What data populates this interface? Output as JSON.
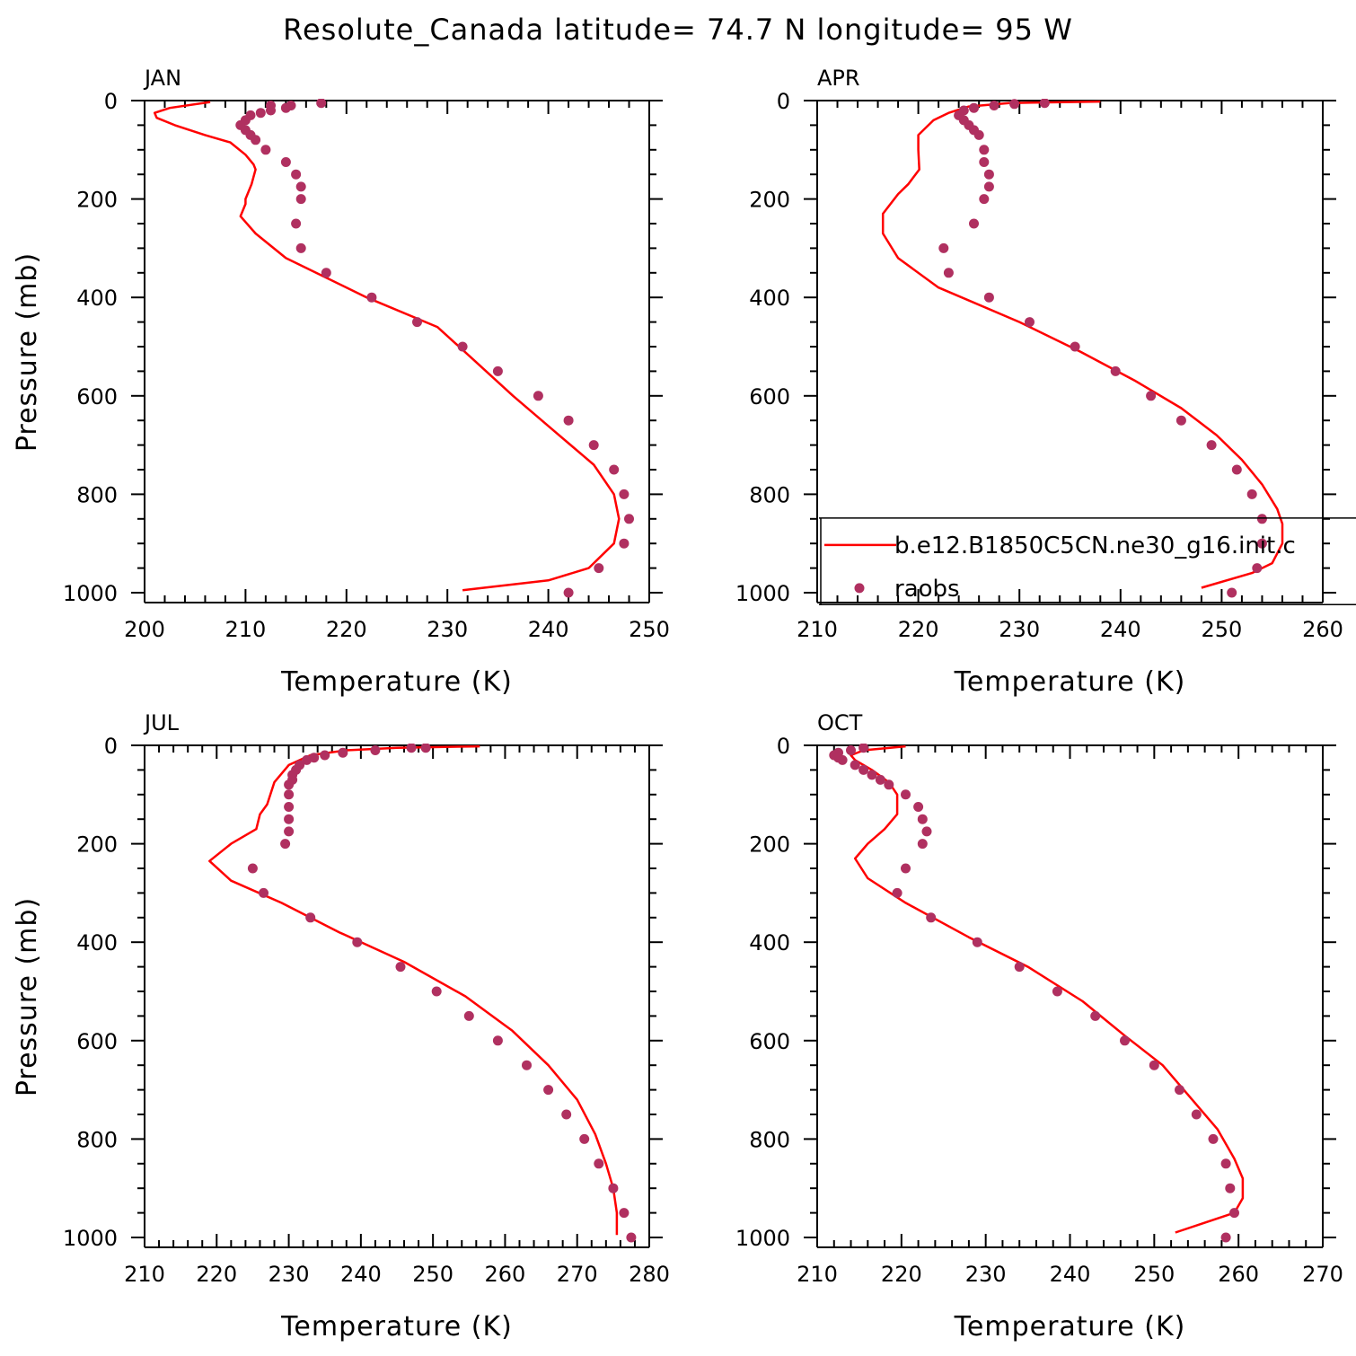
{
  "title": "Resolute_Canada  latitude= 74.7 N longitude= 95 W",
  "colors": {
    "model": "#ff0000",
    "obs": "#b03060",
    "axis": "#000000"
  },
  "legend": {
    "panel": "APR",
    "entries": [
      {
        "label": "b.e12.B1850C5CN.ne30_g16.init.c",
        "style": "line",
        "color": "#ff0000"
      },
      {
        "label": "raobs",
        "style": "marker",
        "color": "#b03060"
      }
    ]
  },
  "chart_data": [
    {
      "type": "line",
      "panel": "JAN",
      "xlabel": "Temperature (K)",
      "ylabel": "Pressure (mb)",
      "xlim": [
        200,
        250
      ],
      "ylim": [
        1000,
        0
      ],
      "xticks": [
        200,
        210,
        220,
        230,
        240,
        250
      ],
      "yticks": [
        0,
        200,
        400,
        600,
        800,
        1000
      ],
      "series": [
        {
          "name": "b.e12.B1850C5CN.ne30_g16.init.c",
          "style": "line",
          "points": [
            [
              206.5,
              3
            ],
            [
              202.5,
              15
            ],
            [
              201,
              25
            ],
            [
              201.2,
              35
            ],
            [
              203,
              50
            ],
            [
              206,
              70
            ],
            [
              208.5,
              85
            ],
            [
              210,
              110
            ],
            [
              210.8,
              130
            ],
            [
              211,
              140
            ],
            [
              210.6,
              170
            ],
            [
              210,
              200
            ],
            [
              210,
              210
            ],
            [
              209.5,
              235
            ],
            [
              211,
              270
            ],
            [
              214,
              320
            ],
            [
              222,
              400
            ],
            [
              229,
              460
            ],
            [
              232.5,
              525
            ],
            [
              236.5,
              600
            ],
            [
              240.5,
              670
            ],
            [
              244.5,
              740
            ],
            [
              246.5,
              800
            ],
            [
              247,
              850
            ],
            [
              246.5,
              900
            ],
            [
              244,
              950
            ],
            [
              240,
              975
            ],
            [
              231.5,
              995
            ]
          ]
        },
        {
          "name": "raobs",
          "style": "marker",
          "points": [
            [
              217.5,
              5
            ],
            [
              214.5,
              10
            ],
            [
              212.5,
              10
            ],
            [
              214,
              15
            ],
            [
              212.5,
              20
            ],
            [
              211.5,
              25
            ],
            [
              210.5,
              30
            ],
            [
              210,
              40
            ],
            [
              209.5,
              50
            ],
            [
              210,
              60
            ],
            [
              210.5,
              70
            ],
            [
              211,
              80
            ],
            [
              212,
              100
            ],
            [
              214,
              125
            ],
            [
              215,
              150
            ],
            [
              215.5,
              175
            ],
            [
              215.5,
              200
            ],
            [
              215,
              250
            ],
            [
              215.5,
              300
            ],
            [
              218,
              350
            ],
            [
              222.5,
              400
            ],
            [
              227,
              450
            ],
            [
              231.5,
              500
            ],
            [
              235,
              550
            ],
            [
              239,
              600
            ],
            [
              242,
              650
            ],
            [
              244.5,
              700
            ],
            [
              246.5,
              750
            ],
            [
              247.5,
              800
            ],
            [
              248,
              850
            ],
            [
              247.5,
              900
            ],
            [
              245,
              950
            ],
            [
              242,
              1000
            ]
          ]
        }
      ]
    },
    {
      "type": "line",
      "panel": "APR",
      "xlabel": "Temperature (K)",
      "ylabel": "",
      "xlim": [
        210,
        260
      ],
      "ylim": [
        1000,
        0
      ],
      "xticks": [
        210,
        220,
        230,
        240,
        250,
        260
      ],
      "yticks": [
        0,
        200,
        400,
        600,
        800,
        1000
      ],
      "series": [
        {
          "name": "b.e12.B1850C5CN.ne30_g16.init.c",
          "style": "line",
          "points": [
            [
              238,
              2
            ],
            [
              229,
              5
            ],
            [
              225,
              12
            ],
            [
              223,
              25
            ],
            [
              221.5,
              40
            ],
            [
              220,
              70
            ],
            [
              220,
              100
            ],
            [
              220.1,
              140
            ],
            [
              219,
              170
            ],
            [
              218,
              190
            ],
            [
              216.5,
              230
            ],
            [
              216.5,
              270
            ],
            [
              218,
              320
            ],
            [
              222,
              380
            ],
            [
              230,
              450
            ],
            [
              236,
              510
            ],
            [
              241.5,
              570
            ],
            [
              246,
              625
            ],
            [
              249.5,
              680
            ],
            [
              252,
              730
            ],
            [
              254,
              780
            ],
            [
              255.5,
              830
            ],
            [
              256,
              860
            ],
            [
              256,
              900
            ],
            [
              255,
              940
            ],
            [
              253,
              960
            ],
            [
              248,
              990
            ]
          ]
        },
        {
          "name": "raobs",
          "style": "marker",
          "points": [
            [
              232.5,
              5
            ],
            [
              229.5,
              7
            ],
            [
              227.5,
              10
            ],
            [
              225.5,
              15
            ],
            [
              224.5,
              20
            ],
            [
              224,
              30
            ],
            [
              224.5,
              40
            ],
            [
              225,
              50
            ],
            [
              225.5,
              60
            ],
            [
              226,
              70
            ],
            [
              226.5,
              100
            ],
            [
              226.5,
              125
            ],
            [
              227,
              150
            ],
            [
              227,
              175
            ],
            [
              226.5,
              200
            ],
            [
              225.5,
              250
            ],
            [
              222.5,
              300
            ],
            [
              223,
              350
            ],
            [
              227,
              400
            ],
            [
              231,
              450
            ],
            [
              235.5,
              500
            ],
            [
              239.5,
              550
            ],
            [
              243,
              600
            ],
            [
              246,
              650
            ],
            [
              249,
              700
            ],
            [
              251.5,
              750
            ],
            [
              253,
              800
            ],
            [
              254,
              850
            ],
            [
              254,
              900
            ],
            [
              253.5,
              950
            ],
            [
              251,
              1000
            ]
          ]
        }
      ]
    },
    {
      "type": "line",
      "panel": "JUL",
      "xlabel": "Temperature (K)",
      "ylabel": "Pressure (mb)",
      "xlim": [
        210,
        280
      ],
      "ylim": [
        1000,
        0
      ],
      "xticks": [
        210,
        220,
        230,
        240,
        250,
        260,
        270,
        280
      ],
      "yticks": [
        0,
        200,
        400,
        600,
        800,
        1000
      ],
      "series": [
        {
          "name": "b.e12.B1850C5CN.ne30_g16.init.c",
          "style": "line",
          "points": [
            [
              256.5,
              2
            ],
            [
              245,
              5
            ],
            [
              238,
              10
            ],
            [
              233,
              20
            ],
            [
              230,
              40
            ],
            [
              228,
              75
            ],
            [
              227,
              120
            ],
            [
              226,
              140
            ],
            [
              225.5,
              170
            ],
            [
              222,
              200
            ],
            [
              219,
              235
            ],
            [
              222,
              275
            ],
            [
              229,
              320
            ],
            [
              237,
              380
            ],
            [
              246,
              440
            ],
            [
              254.5,
              510
            ],
            [
              261,
              580
            ],
            [
              266,
              650
            ],
            [
              270,
              720
            ],
            [
              272.5,
              790
            ],
            [
              274,
              850
            ],
            [
              275,
              900
            ],
            [
              275.5,
              950
            ],
            [
              275.5,
              995
            ]
          ]
        },
        {
          "name": "raobs",
          "style": "marker",
          "points": [
            [
              249,
              5
            ],
            [
              247,
              5
            ],
            [
              242,
              10
            ],
            [
              237.5,
              15
            ],
            [
              235,
              20
            ],
            [
              233.5,
              25
            ],
            [
              232.5,
              30
            ],
            [
              231.5,
              40
            ],
            [
              231,
              50
            ],
            [
              230.5,
              60
            ],
            [
              230.5,
              70
            ],
            [
              230,
              80
            ],
            [
              230,
              100
            ],
            [
              230,
              125
            ],
            [
              230,
              150
            ],
            [
              230,
              175
            ],
            [
              229.5,
              200
            ],
            [
              225,
              250
            ],
            [
              226.5,
              300
            ],
            [
              233,
              350
            ],
            [
              239.5,
              400
            ],
            [
              245.5,
              450
            ],
            [
              250.5,
              500
            ],
            [
              255,
              550
            ],
            [
              259,
              600
            ],
            [
              263,
              650
            ],
            [
              266,
              700
            ],
            [
              268.5,
              750
            ],
            [
              271,
              800
            ],
            [
              273,
              850
            ],
            [
              275,
              900
            ],
            [
              276.5,
              950
            ],
            [
              277.5,
              1000
            ]
          ]
        }
      ]
    },
    {
      "type": "line",
      "panel": "OCT",
      "xlabel": "Temperature (K)",
      "ylabel": "",
      "xlim": [
        210,
        270
      ],
      "ylim": [
        1000,
        0
      ],
      "xticks": [
        210,
        220,
        230,
        240,
        250,
        260,
        270
      ],
      "yticks": [
        0,
        200,
        400,
        600,
        800,
        1000
      ],
      "series": [
        {
          "name": "b.e12.B1850C5CN.ne30_g16.init.c",
          "style": "line",
          "points": [
            [
              220.5,
              2
            ],
            [
              215.5,
              10
            ],
            [
              214,
              20
            ],
            [
              214.5,
              30
            ],
            [
              216.5,
              50
            ],
            [
              218.5,
              75
            ],
            [
              219.5,
              100
            ],
            [
              219.5,
              140
            ],
            [
              218,
              170
            ],
            [
              216,
              200
            ],
            [
              214.5,
              230
            ],
            [
              216,
              270
            ],
            [
              220.5,
              320
            ],
            [
              228,
              390
            ],
            [
              235,
              450
            ],
            [
              241.5,
              520
            ],
            [
              246.5,
              590
            ],
            [
              251,
              650
            ],
            [
              254.5,
              720
            ],
            [
              257.5,
              780
            ],
            [
              259.5,
              840
            ],
            [
              260.5,
              880
            ],
            [
              260.5,
              920
            ],
            [
              259.5,
              950
            ],
            [
              256,
              970
            ],
            [
              252.5,
              990
            ]
          ]
        },
        {
          "name": "raobs",
          "style": "marker",
          "points": [
            [
              215.5,
              5
            ],
            [
              214,
              10
            ],
            [
              212.5,
              15
            ],
            [
              212,
              20
            ],
            [
              212.5,
              25
            ],
            [
              213,
              30
            ],
            [
              214.5,
              40
            ],
            [
              215.5,
              50
            ],
            [
              216.5,
              60
            ],
            [
              217.5,
              70
            ],
            [
              218.5,
              80
            ],
            [
              220.5,
              100
            ],
            [
              222,
              125
            ],
            [
              222.5,
              150
            ],
            [
              223,
              175
            ],
            [
              222.5,
              200
            ],
            [
              220.5,
              250
            ],
            [
              219.5,
              300
            ],
            [
              223.5,
              350
            ],
            [
              229,
              400
            ],
            [
              234,
              450
            ],
            [
              238.5,
              500
            ],
            [
              243,
              550
            ],
            [
              246.5,
              600
            ],
            [
              250,
              650
            ],
            [
              253,
              700
            ],
            [
              255,
              750
            ],
            [
              257,
              800
            ],
            [
              258.5,
              850
            ],
            [
              259,
              900
            ],
            [
              259.5,
              950
            ],
            [
              258.5,
              1000
            ]
          ]
        }
      ]
    }
  ]
}
